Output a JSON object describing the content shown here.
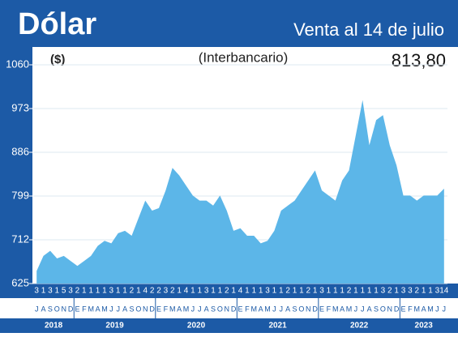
{
  "chart_data": {
    "type": "area",
    "title": "Dólar",
    "subtitle": "Venta al 14 de julio",
    "note": "(Interbancario)",
    "y_label": "($)",
    "categories": [
      "J",
      "A",
      "S",
      "O",
      "N",
      "D",
      "E",
      "F",
      "M",
      "A",
      "M",
      "J",
      "J",
      "A",
      "S",
      "O",
      "N",
      "D",
      "E",
      "F",
      "M",
      "A",
      "M",
      "J",
      "J",
      "A",
      "S",
      "O",
      "N",
      "D",
      "E",
      "F",
      "M",
      "A",
      "M",
      "J",
      "J",
      "A",
      "S",
      "O",
      "N",
      "D",
      "E",
      "F",
      "M",
      "A",
      "M",
      "J",
      "J",
      "A",
      "S",
      "O",
      "N",
      "D",
      "E",
      "F",
      "M",
      "A",
      "M",
      "J",
      "J"
    ],
    "day_labels": [
      "3",
      "1",
      "3",
      "1",
      "5",
      "3",
      "2",
      "1",
      "1",
      "1",
      "1",
      "3",
      "1",
      "1",
      "2",
      "1",
      "4",
      "2",
      "2",
      "3",
      "2",
      "1",
      "4",
      "1",
      "1",
      "3",
      "1",
      "1",
      "2",
      "1",
      "4",
      "1",
      "1",
      "1",
      "3",
      "1",
      "1",
      "2",
      "1",
      "1",
      "2",
      "1",
      "3",
      "1",
      "1",
      "1",
      "2",
      "1",
      "1",
      "1",
      "1",
      "3",
      "2",
      "1",
      "3",
      "3",
      "2",
      "1",
      "1",
      "3",
      "14"
    ],
    "years": [
      "2018",
      "2019",
      "2020",
      "2021",
      "2022",
      "2023"
    ],
    "series": [
      {
        "name": "Dólar",
        "color": "#5cb6e8",
        "values": [
          650,
          680,
          690,
          675,
          680,
          670,
          660,
          670,
          680,
          700,
          710,
          705,
          725,
          730,
          720,
          755,
          790,
          770,
          775,
          810,
          855,
          840,
          820,
          800,
          790,
          790,
          780,
          800,
          770,
          730,
          735,
          720,
          720,
          705,
          710,
          730,
          770,
          780,
          790,
          810,
          830,
          850,
          810,
          800,
          790,
          830,
          850,
          920,
          990,
          900,
          950,
          960,
          900,
          860,
          800,
          800,
          790,
          800,
          800,
          800,
          813.8
        ],
        "value_labels": [
          null,
          null,
          null,
          null,
          null,
          null,
          null,
          null,
          null,
          null,
          null,
          null,
          null,
          null,
          null,
          null,
          null,
          null,
          null,
          null,
          null,
          null,
          null,
          null,
          null,
          null,
          null,
          null,
          null,
          null,
          null,
          null,
          null,
          null,
          null,
          null,
          null,
          null,
          null,
          null,
          null,
          null,
          null,
          null,
          null,
          null,
          null,
          null,
          null,
          null,
          null,
          null,
          null,
          null,
          null,
          null,
          null,
          null,
          null,
          null,
          "813,80"
        ]
      }
    ],
    "ylim": [
      625,
      1060
    ],
    "yticks": [
      625,
      712,
      799,
      886,
      973,
      1060
    ],
    "grid": true
  }
}
